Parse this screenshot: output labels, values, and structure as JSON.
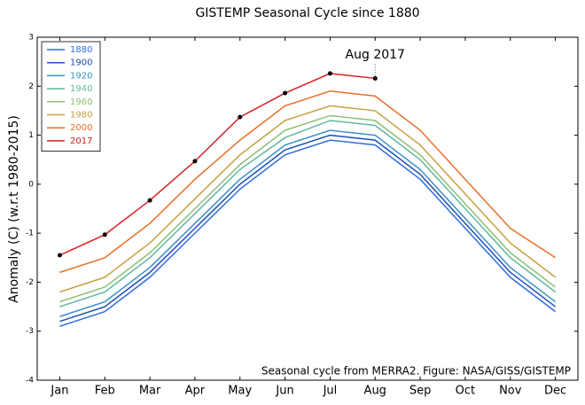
{
  "chart_data": {
    "type": "line",
    "title": "GISTEMP Seasonal Cycle since 1880",
    "ylabel": "Anomaly (C) (w.r.t 1980-2015)",
    "note": "Seasonal cycle from MERRA2. Figure: NASA/GISS/GISTEMP",
    "annotation": {
      "text": "Aug 2017",
      "series": 7,
      "index": 7
    },
    "categories": [
      "Jan",
      "Feb",
      "Mar",
      "Apr",
      "May",
      "Jun",
      "Jul",
      "Aug",
      "Sep",
      "Oct",
      "Nov",
      "Dec"
    ],
    "ylim": [
      -4,
      3
    ],
    "yticks": [
      -4,
      -3,
      -2,
      -1,
      0,
      1,
      2,
      3
    ],
    "legend": "upper left",
    "series": [
      {
        "name": "1880",
        "color": "#2f6ee0",
        "values": [
          -2.9,
          -2.6,
          -1.9,
          -1.0,
          -0.1,
          0.6,
          0.9,
          0.8,
          0.1,
          -0.9,
          -1.9,
          -2.6
        ]
      },
      {
        "name": "1900",
        "color": "#1f4fb0",
        "values": [
          -2.8,
          -2.5,
          -1.8,
          -0.9,
          0.0,
          0.7,
          1.0,
          0.9,
          0.2,
          -0.8,
          -1.8,
          -2.5
        ]
      },
      {
        "name": "1920",
        "color": "#3a90c8",
        "values": [
          -2.7,
          -2.4,
          -1.7,
          -0.8,
          0.1,
          0.8,
          1.1,
          1.0,
          0.3,
          -0.7,
          -1.7,
          -2.4
        ]
      },
      {
        "name": "1940",
        "color": "#5fb8a0",
        "values": [
          -2.5,
          -2.2,
          -1.5,
          -0.6,
          0.3,
          0.95,
          1.3,
          1.2,
          0.5,
          -0.5,
          -1.5,
          -2.2
        ]
      },
      {
        "name": "1960",
        "color": "#8cc070",
        "values": [
          -2.4,
          -2.1,
          -1.4,
          -0.5,
          0.4,
          1.1,
          1.4,
          1.3,
          0.6,
          -0.4,
          -1.4,
          -2.1
        ]
      },
      {
        "name": "1980",
        "color": "#c8a040",
        "values": [
          -2.2,
          -1.9,
          -1.2,
          -0.3,
          0.6,
          1.3,
          1.6,
          1.5,
          0.8,
          -0.2,
          -1.2,
          -1.9
        ]
      },
      {
        "name": "2000",
        "color": "#e8702a",
        "values": [
          -1.8,
          -1.5,
          -0.8,
          0.1,
          0.9,
          1.6,
          1.9,
          1.8,
          1.1,
          0.1,
          -0.9,
          -1.5
        ]
      },
      {
        "name": "2017",
        "color": "#d62020",
        "marker_color": "#000000",
        "values": [
          -1.45,
          -1.03,
          -0.33,
          0.47,
          1.37,
          1.86,
          2.26,
          2.16,
          null,
          null,
          null,
          null
        ]
      }
    ]
  }
}
